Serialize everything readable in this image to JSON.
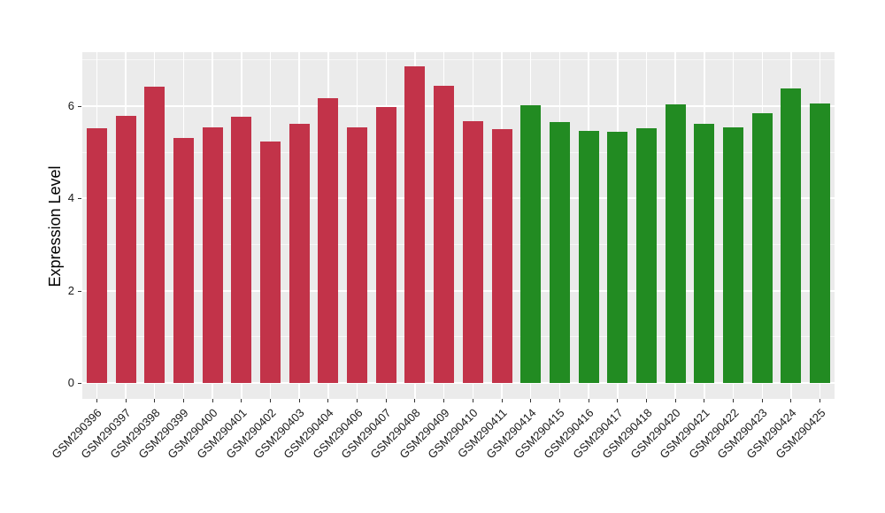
{
  "chart_data": {
    "type": "bar",
    "title": "",
    "xlabel": "",
    "ylabel": "Expression Level",
    "yticks": [
      0,
      2,
      4,
      6
    ],
    "minor_yticks": [
      1,
      3,
      5,
      7
    ],
    "ylim": [
      0,
      7.2
    ],
    "grid": "on",
    "legend": "none",
    "panel_background": "#EBEBEB",
    "gridline_color": "#FFFFFF",
    "bar_color_red": "#C23349",
    "bar_color_green": "#228B22",
    "categories": [
      "GSM290396",
      "GSM290397",
      "GSM290398",
      "GSM290399",
      "GSM290400",
      "GSM290401",
      "GSM290402",
      "GSM290403",
      "GSM290404",
      "GSM290406",
      "GSM290407",
      "GSM290408",
      "GSM290409",
      "GSM290410",
      "GSM290411",
      "GSM290414",
      "GSM290415",
      "GSM290416",
      "GSM290417",
      "GSM290418",
      "GSM290420",
      "GSM290421",
      "GSM290422",
      "GSM290423",
      "GSM290424",
      "GSM290425"
    ],
    "values": [
      5.52,
      5.78,
      6.42,
      5.31,
      5.54,
      5.77,
      5.24,
      5.62,
      6.18,
      5.54,
      5.99,
      6.86,
      6.45,
      5.67,
      5.5,
      6.02,
      5.66,
      5.47,
      5.45,
      5.52,
      6.04,
      5.62,
      5.54,
      5.84,
      6.39,
      6.06
    ],
    "colors": [
      "#C23349",
      "#C23349",
      "#C23349",
      "#C23349",
      "#C23349",
      "#C23349",
      "#C23349",
      "#C23349",
      "#C23349",
      "#C23349",
      "#C23349",
      "#C23349",
      "#C23349",
      "#C23349",
      "#C23349",
      "#228B22",
      "#228B22",
      "#228B22",
      "#228B22",
      "#228B22",
      "#228B22",
      "#228B22",
      "#228B22",
      "#228B22",
      "#228B22",
      "#228B22"
    ]
  }
}
